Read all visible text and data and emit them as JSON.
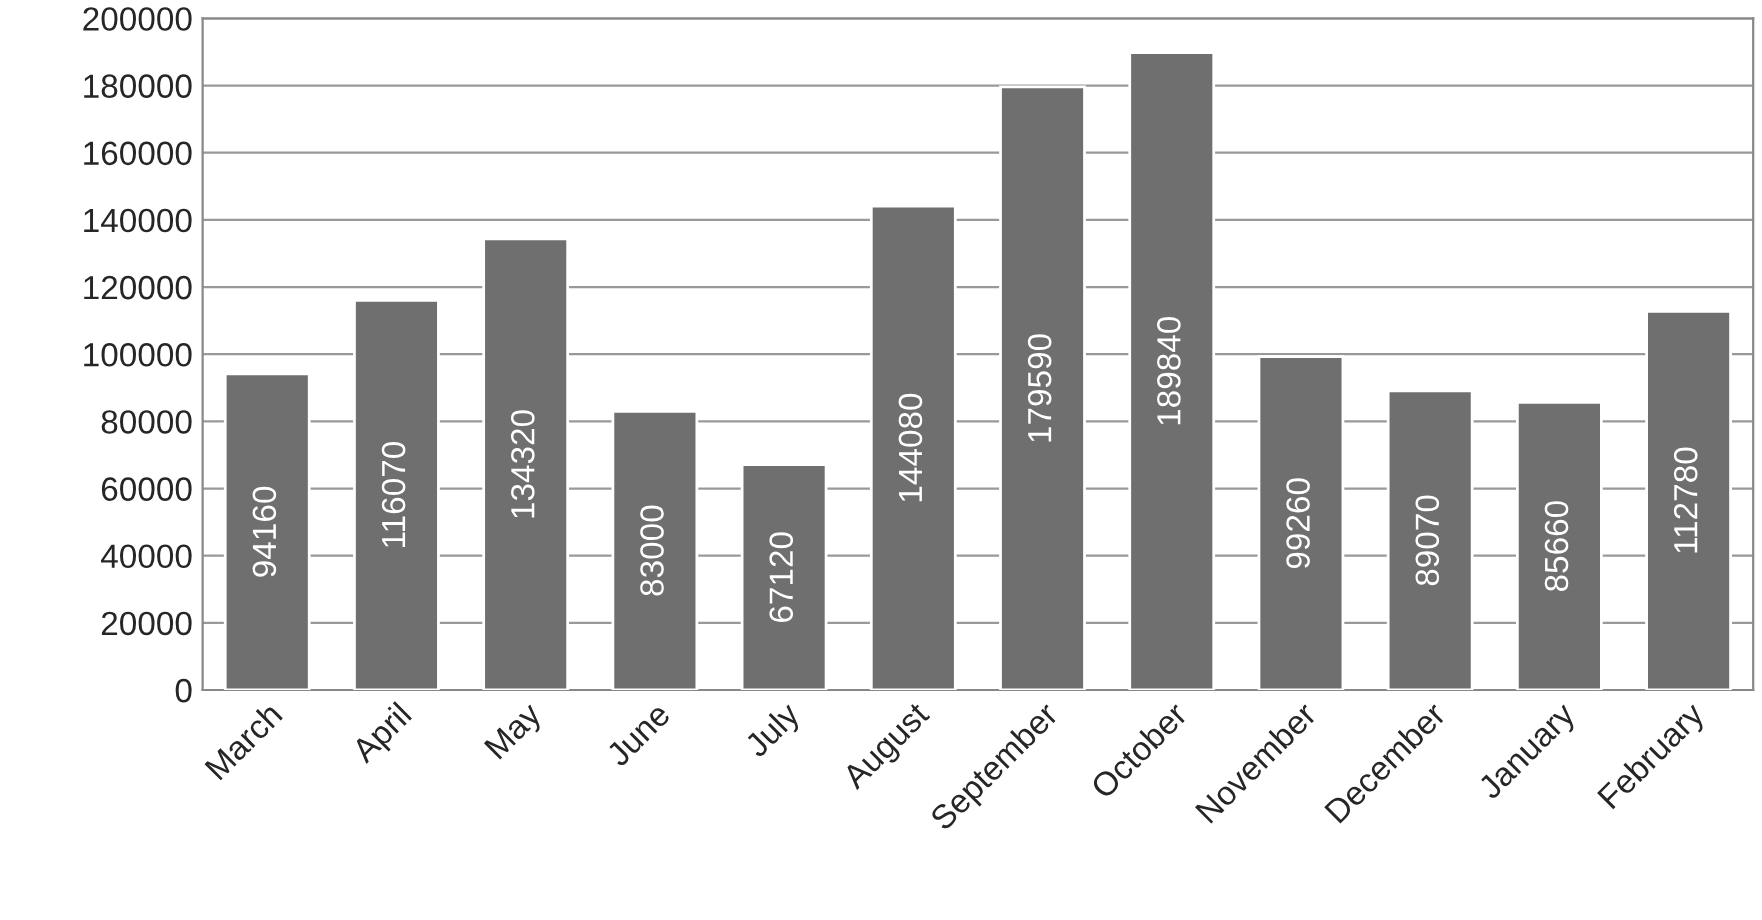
{
  "chart_data": {
    "type": "bar",
    "categories": [
      "March",
      "April",
      "May",
      "June",
      "July",
      "August",
      "September",
      "October",
      "November",
      "December",
      "January",
      "February"
    ],
    "values": [
      94160,
      116070,
      134320,
      83000,
      67120,
      144080,
      179590,
      189840,
      99260,
      89070,
      85660,
      112780
    ],
    "color": "#6f6f6f",
    "ylim": [
      0,
      200000
    ],
    "yticks": [
      0,
      20000,
      40000,
      60000,
      80000,
      100000,
      120000,
      140000,
      160000,
      180000,
      200000
    ],
    "grid": "y",
    "data_labels": true
  }
}
